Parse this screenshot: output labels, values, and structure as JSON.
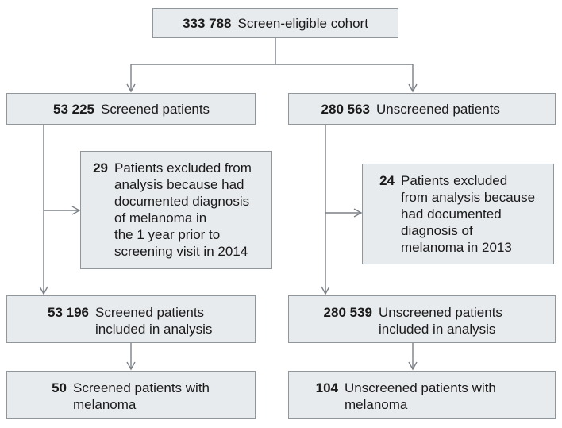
{
  "flowchart": {
    "cohort": {
      "count": "333 788",
      "label": "Screen-eligible cohort"
    },
    "screened": {
      "count": "53 225",
      "label": "Screened patients"
    },
    "unscreened": {
      "count": "280 563",
      "label": "Unscreened patients"
    },
    "excluded_screened": {
      "count": "29",
      "label": "Patients excluded from\nanalysis because had\ndocumented diagnosis\nof melanoma in\nthe 1 year prior to\nscreening visit in 2014"
    },
    "excluded_unscreened": {
      "count": "24",
      "label": "Patients excluded\nfrom analysis because\nhad documented\ndiagnosis of\nmelanoma in 2013"
    },
    "screened_included": {
      "count": "53 196",
      "label": "Screened patients\nincluded in analysis"
    },
    "unscreened_included": {
      "count": "280 539",
      "label": "Unscreened patients\nincluded in analysis"
    },
    "screened_melanoma": {
      "count": "50",
      "label": "Screened patients with\nmelanoma"
    },
    "unscreened_melanoma": {
      "count": "104",
      "label": "Unscreened patients with\nmelanoma"
    }
  },
  "colors": {
    "box_fill": "#e8ebee",
    "box_border": "#8f969c",
    "connector": "#7b8187"
  }
}
